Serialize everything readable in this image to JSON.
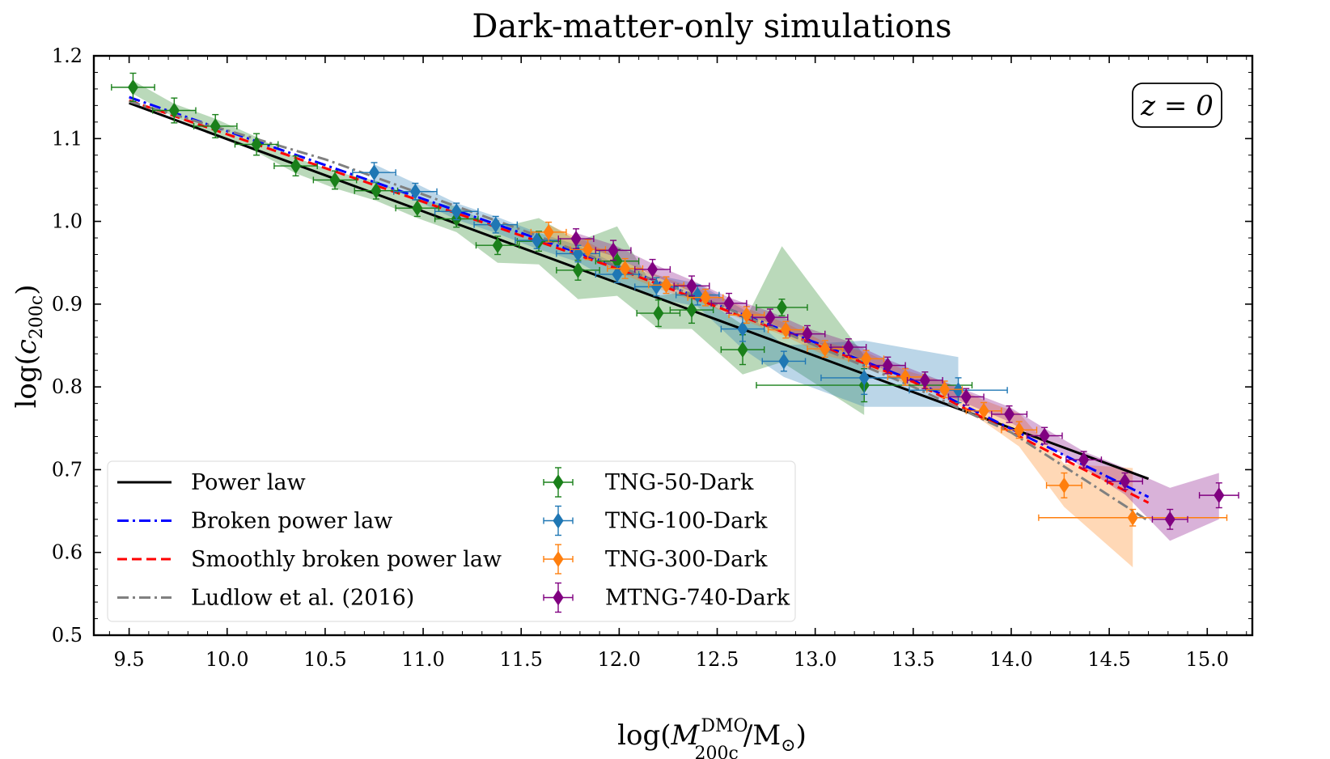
{
  "chart_data": {
    "type": "scatter",
    "title": "Dark-matter-only simulations",
    "xlabel": {
      "prefix": "log(",
      "symbol": "M",
      "sup": "DMO",
      "sub": "200c",
      "suffix": "/M",
      "sun": "⊙",
      "close": ")"
    },
    "ylabel": {
      "prefix": "log(",
      "symbol": "c",
      "sub": "200c",
      "close": ")"
    },
    "xlim": [
      9.32,
      15.23
    ],
    "ylim": [
      0.5,
      1.2
    ],
    "xticks": [
      "9.5",
      "10.0",
      "10.5",
      "11.0",
      "11.5",
      "12.0",
      "12.5",
      "13.0",
      "13.5",
      "14.0",
      "14.5",
      "15.0"
    ],
    "yticks": [
      "0.5",
      "0.6",
      "0.7",
      "0.8",
      "0.9",
      "1.0",
      "1.1",
      "1.2"
    ],
    "annotation": "z = 0",
    "legend_position": "lower-left",
    "legend_columns": 2,
    "grid": false,
    "lines": [
      {
        "name": "Power law",
        "color": "#000000",
        "style": "solid",
        "x": [
          9.5,
          14.7
        ],
        "y": [
          1.143,
          0.689
        ]
      },
      {
        "name": "Broken power law",
        "color": "#0000ff",
        "style": "dashdot",
        "x": [
          9.5,
          12.0,
          13.5,
          14.7
        ],
        "y": [
          1.15,
          0.945,
          0.808,
          0.667
        ]
      },
      {
        "name": "Smoothly broken power law",
        "color": "#ff0000",
        "style": "dashed",
        "x": [
          9.5,
          12.0,
          13.5,
          14.7
        ],
        "y": [
          1.146,
          0.942,
          0.806,
          0.66
        ]
      },
      {
        "name": "Ludlow et al. (2016)",
        "color": "#808080",
        "style": "dashdot",
        "x": [
          9.5,
          10.5,
          11.5,
          12.5,
          13.0,
          13.5,
          14.0,
          14.7
        ],
        "y": [
          1.145,
          1.075,
          0.99,
          0.9,
          0.85,
          0.8,
          0.745,
          0.638
        ]
      }
    ],
    "series": [
      {
        "name": "TNG-50-Dark",
        "color": "#1a801a",
        "x": [
          9.52,
          9.73,
          9.94,
          10.15,
          10.35,
          10.55,
          10.76,
          10.97,
          11.17,
          11.38,
          11.59,
          11.79,
          11.99,
          12.2,
          12.37,
          12.63,
          12.83,
          13.25
        ],
        "y": [
          1.162,
          1.134,
          1.115,
          1.093,
          1.067,
          1.05,
          1.037,
          1.016,
          1.003,
          0.971,
          0.976,
          0.941,
          0.952,
          0.889,
          0.893,
          0.845,
          0.896,
          0.802
        ],
        "xerr": [
          0.11,
          0.11,
          0.11,
          0.11,
          0.11,
          0.11,
          0.11,
          0.11,
          0.11,
          0.11,
          0.11,
          0.11,
          0.11,
          0.11,
          0.11,
          0.11,
          0.13,
          0.55
        ],
        "yerr": [
          0.017,
          0.015,
          0.014,
          0.013,
          0.012,
          0.011,
          0.01,
          0.01,
          0.01,
          0.011,
          0.012,
          0.012,
          0.014,
          0.016,
          0.016,
          0.018,
          0.01,
          0.02
        ],
        "band_lo": [
          1.154,
          1.126,
          1.105,
          1.084,
          1.058,
          1.04,
          1.025,
          1.004,
          0.987,
          0.95,
          0.948,
          0.906,
          0.91,
          0.87,
          0.87,
          0.815,
          0.83,
          0.766
        ],
        "band_hi": [
          1.17,
          1.142,
          1.124,
          1.102,
          1.077,
          1.06,
          1.049,
          1.027,
          1.018,
          0.992,
          1.004,
          0.976,
          0.994,
          0.91,
          0.916,
          0.875,
          0.97,
          0.838
        ]
      },
      {
        "name": "TNG-100-Dark",
        "color": "#1f77b4",
        "x": [
          10.75,
          10.96,
          11.17,
          11.37,
          11.58,
          11.79,
          11.99,
          12.19,
          12.4,
          12.63,
          12.84,
          13.25,
          13.73
        ],
        "y": [
          1.059,
          1.036,
          1.012,
          0.996,
          0.977,
          0.961,
          0.936,
          0.921,
          0.911,
          0.87,
          0.831,
          0.811,
          0.796
        ],
        "xerr": [
          0.11,
          0.11,
          0.11,
          0.11,
          0.11,
          0.11,
          0.11,
          0.11,
          0.11,
          0.11,
          0.11,
          0.22,
          0.25
        ],
        "yerr": [
          0.012,
          0.01,
          0.01,
          0.01,
          0.01,
          0.01,
          0.01,
          0.011,
          0.012,
          0.015,
          0.012,
          0.02,
          0.015
        ],
        "band_lo": [
          1.049,
          1.026,
          1.002,
          0.986,
          0.967,
          0.951,
          0.924,
          0.907,
          0.897,
          0.846,
          0.812,
          0.776,
          0.776
        ],
        "band_hi": [
          1.069,
          1.046,
          1.022,
          1.006,
          0.987,
          0.971,
          0.948,
          0.935,
          0.925,
          0.894,
          0.85,
          0.856,
          0.836
        ]
      },
      {
        "name": "TNG-300-Dark",
        "color": "#ff7f0e",
        "x": [
          11.64,
          11.84,
          12.03,
          12.24,
          12.44,
          12.65,
          12.85,
          13.05,
          13.26,
          13.46,
          13.66,
          13.86,
          14.04,
          14.27,
          14.62
        ],
        "y": [
          0.987,
          0.966,
          0.943,
          0.923,
          0.908,
          0.887,
          0.869,
          0.846,
          0.834,
          0.812,
          0.797,
          0.771,
          0.748,
          0.681,
          0.642
        ],
        "xerr": [
          0.09,
          0.09,
          0.09,
          0.09,
          0.09,
          0.09,
          0.09,
          0.09,
          0.09,
          0.09,
          0.09,
          0.09,
          0.09,
          0.09,
          0.48
        ],
        "yerr": [
          0.012,
          0.012,
          0.012,
          0.01,
          0.01,
          0.01,
          0.01,
          0.01,
          0.01,
          0.01,
          0.01,
          0.01,
          0.01,
          0.015,
          0.01
        ],
        "band_lo": [
          0.978,
          0.957,
          0.935,
          0.915,
          0.9,
          0.879,
          0.861,
          0.838,
          0.826,
          0.804,
          0.788,
          0.758,
          0.728,
          0.655,
          0.582
        ],
        "band_hi": [
          0.996,
          0.975,
          0.951,
          0.931,
          0.916,
          0.895,
          0.877,
          0.854,
          0.842,
          0.82,
          0.806,
          0.784,
          0.768,
          0.707,
          0.702
        ]
      },
      {
        "name": "MTNG-740-Dark",
        "color": "#800080",
        "x": [
          11.78,
          11.97,
          12.17,
          12.37,
          12.56,
          12.77,
          12.96,
          13.17,
          13.37,
          13.56,
          13.77,
          13.99,
          14.17,
          14.37,
          14.58,
          14.81,
          15.06
        ],
        "y": [
          0.979,
          0.965,
          0.942,
          0.922,
          0.901,
          0.884,
          0.864,
          0.848,
          0.826,
          0.808,
          0.788,
          0.767,
          0.741,
          0.712,
          0.686,
          0.64,
          0.669
        ],
        "xerr": [
          0.09,
          0.09,
          0.09,
          0.09,
          0.09,
          0.09,
          0.09,
          0.09,
          0.09,
          0.09,
          0.09,
          0.09,
          0.09,
          0.09,
          0.09,
          0.09,
          0.1
        ],
        "yerr": [
          0.012,
          0.012,
          0.012,
          0.012,
          0.012,
          0.01,
          0.01,
          0.01,
          0.01,
          0.01,
          0.01,
          0.01,
          0.01,
          0.01,
          0.01,
          0.012,
          0.015
        ],
        "band_lo": [
          0.972,
          0.958,
          0.935,
          0.915,
          0.894,
          0.877,
          0.857,
          0.841,
          0.819,
          0.801,
          0.78,
          0.758,
          0.732,
          0.702,
          0.67,
          0.614,
          0.64
        ],
        "band_hi": [
          0.986,
          0.972,
          0.949,
          0.929,
          0.908,
          0.891,
          0.871,
          0.855,
          0.833,
          0.815,
          0.796,
          0.776,
          0.75,
          0.722,
          0.702,
          0.678,
          0.696
        ]
      }
    ]
  }
}
